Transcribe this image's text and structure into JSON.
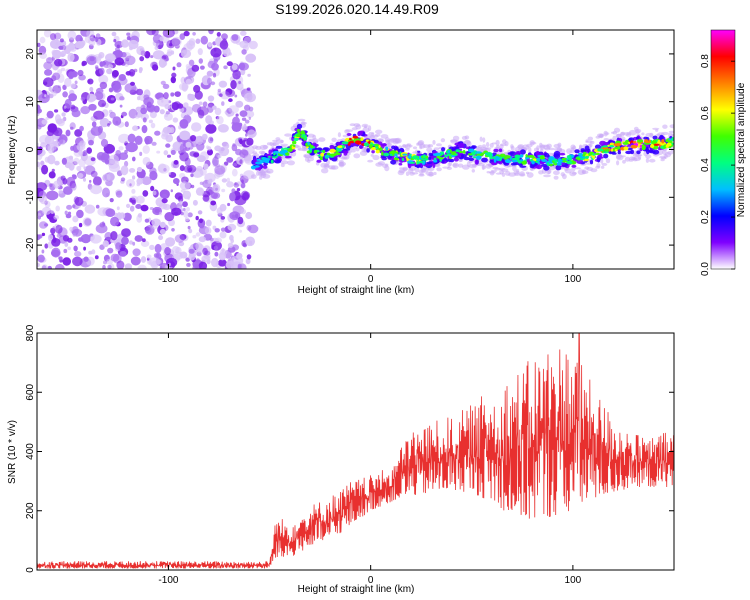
{
  "title": "S199.2026.020.14.49.R09",
  "chart_data": [
    {
      "type": "heatmap",
      "name": "spectrogram",
      "xlabel": "Height of straight line (km)",
      "ylabel": "Frequency (Hz)",
      "xlim": [
        -165,
        150
      ],
      "ylim": [
        -25,
        25
      ],
      "xticks": [
        {
          "value": -100,
          "label": "-100"
        },
        {
          "value": 0,
          "label": "0"
        },
        {
          "value": 100,
          "label": "100"
        }
      ],
      "yticks": [
        {
          "value": 20,
          "label": "20"
        },
        {
          "value": 10,
          "label": "10"
        },
        {
          "value": 0,
          "label": "0"
        },
        {
          "value": -10,
          "label": "-10"
        },
        {
          "value": -20,
          "label": "-20"
        }
      ],
      "noise_region_x": [
        -165,
        -58
      ],
      "signal_start_x": -58,
      "ridge": {
        "x": [
          -58,
          -50,
          -45,
          -40,
          -37,
          -35,
          -30,
          -25,
          -20,
          -15,
          -12,
          -10,
          -5,
          0,
          5,
          10,
          20,
          30,
          40,
          45,
          50,
          60,
          70,
          80,
          90,
          100,
          110,
          120,
          130,
          140,
          150
        ],
        "frequency": [
          -3,
          -2,
          -1,
          0,
          2,
          4,
          0,
          -1,
          -1,
          0,
          1,
          2,
          2,
          1,
          0,
          -1,
          -2,
          -2,
          -1,
          0,
          -1,
          -1.5,
          -2,
          -2,
          -2.5,
          -2,
          -1,
          0.5,
          1,
          1,
          1.5
        ],
        "amplitude": [
          0.35,
          0.4,
          0.5,
          0.55,
          0.6,
          0.55,
          0.55,
          0.6,
          0.55,
          0.6,
          0.7,
          0.85,
          0.8,
          0.75,
          0.6,
          0.55,
          0.6,
          0.55,
          0.5,
          0.6,
          0.55,
          0.5,
          0.5,
          0.55,
          0.5,
          0.5,
          0.6,
          0.75,
          0.9,
          0.8,
          0.6
        ]
      },
      "colorbar": {
        "label": "Normalized spectral amplitude",
        "min": 0.0,
        "max": 0.92,
        "ticks": [
          {
            "value": 0.0,
            "label": "0.0"
          },
          {
            "value": 0.2,
            "label": "0.2"
          },
          {
            "value": 0.4,
            "label": "0.4"
          },
          {
            "value": 0.6,
            "label": "0.6"
          },
          {
            "value": 0.8,
            "label": "0.8"
          }
        ],
        "colors": [
          "#ffffff",
          "#7f00ff",
          "#0000ff",
          "#00bfff",
          "#00ff80",
          "#40ff00",
          "#ffff00",
          "#ff8000",
          "#ff0000",
          "#ff00ff"
        ]
      }
    },
    {
      "type": "line",
      "name": "snr",
      "xlabel": "Height of straight line (km)",
      "ylabel": "SNR (10 * v/v)",
      "xlim": [
        -165,
        150
      ],
      "ylim": [
        0,
        800
      ],
      "xticks": [
        {
          "value": -100,
          "label": "-100"
        },
        {
          "value": 0,
          "label": "0"
        },
        {
          "value": 100,
          "label": "100"
        }
      ],
      "yticks": [
        {
          "value": 0,
          "label": "0"
        },
        {
          "value": 200,
          "label": "200"
        },
        {
          "value": 400,
          "label": "400"
        },
        {
          "value": 600,
          "label": "600"
        },
        {
          "value": 800,
          "label": "800"
        }
      ],
      "series": [
        {
          "name": "SNR",
          "color": "#e8302f",
          "envelope_x": [
            -165,
            -120,
            -80,
            -50,
            -47,
            -40,
            -30,
            -20,
            -10,
            0,
            10,
            20,
            30,
            40,
            50,
            60,
            70,
            80,
            90,
            100,
            110,
            120,
            130,
            140,
            150
          ],
          "envelope_low": [
            5,
            5,
            5,
            5,
            40,
            40,
            80,
            100,
            150,
            200,
            230,
            250,
            260,
            270,
            260,
            230,
            180,
            170,
            180,
            200,
            240,
            260,
            280,
            280,
            280
          ],
          "envelope_high": [
            30,
            30,
            30,
            30,
            180,
            170,
            220,
            250,
            300,
            320,
            350,
            480,
            500,
            520,
            560,
            620,
            660,
            720,
            780,
            760,
            620,
            520,
            460,
            450,
            480
          ],
          "peak_x": 103,
          "peak_value": 800
        }
      ]
    }
  ]
}
